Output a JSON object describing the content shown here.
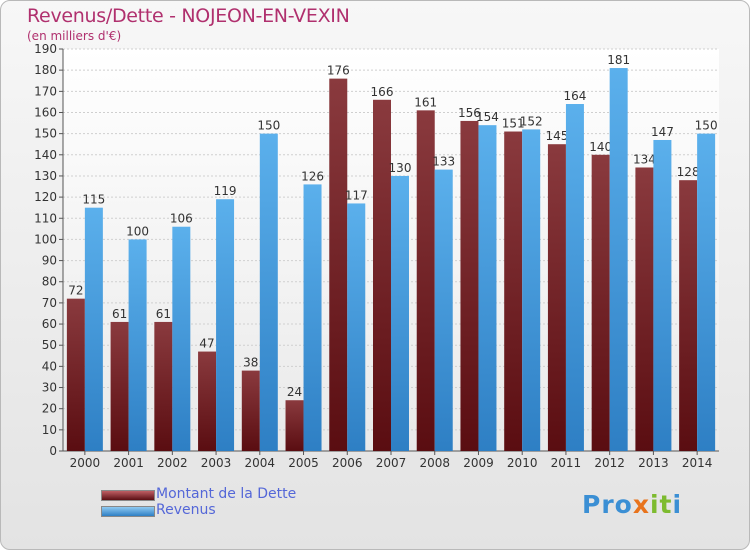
{
  "title": "Revenus/Dette - NOJEON-EN-VEXIN",
  "subtitle": "(en milliers d'€)",
  "logo": "Proxiti",
  "colors": {
    "dette": "#7a2327",
    "revenus": "#4aa2e3",
    "title": "#b0306e",
    "legend_text": "#5467d8"
  },
  "chart_data": {
    "type": "bar",
    "categories": [
      "2000",
      "2001",
      "2002",
      "2003",
      "2004",
      "2005",
      "2006",
      "2007",
      "2008",
      "2009",
      "2010",
      "2011",
      "2012",
      "2013",
      "2014"
    ],
    "series": [
      {
        "name": "Montant de la Dette",
        "values": [
          72,
          61,
          61,
          47,
          38,
          24,
          176,
          166,
          161,
          156,
          151,
          145,
          140,
          134,
          128
        ]
      },
      {
        "name": "Revenus",
        "values": [
          115,
          100,
          106,
          119,
          150,
          126,
          117,
          130,
          133,
          154,
          152,
          164,
          181,
          147,
          150
        ]
      }
    ],
    "ylim": [
      0,
      190
    ],
    "ytick_step": 10,
    "grid": true,
    "legend_position": "bottom-left"
  }
}
